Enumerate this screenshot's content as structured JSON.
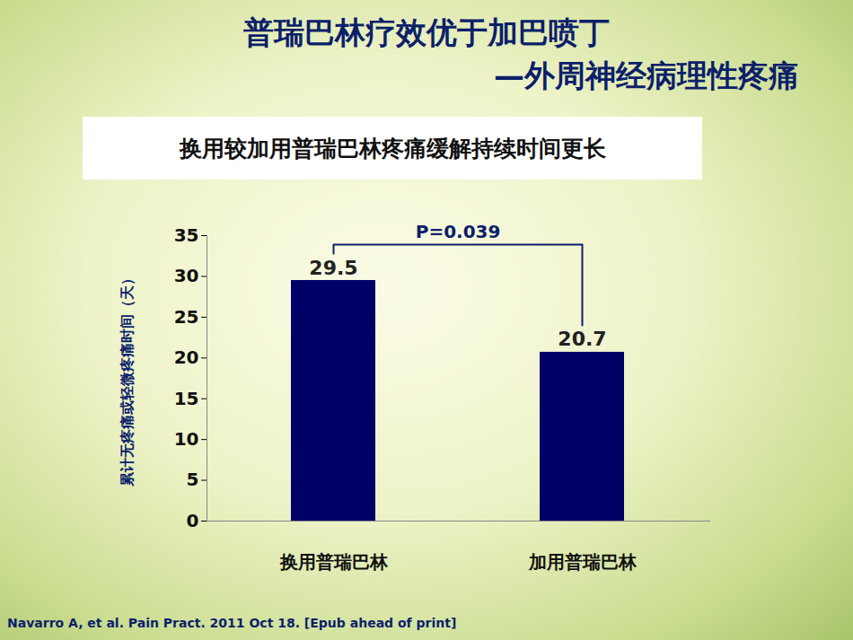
{
  "chart_data": {
    "type": "bar",
    "title": [
      "普瑞巴林疗效优于加巴喷丁",
      "—外周神经病理性疼痛"
    ],
    "subtitle": "换用较加用普瑞巴林疼痛缓解持续时间更长",
    "y_label": "累计无疼痛或轻微疼痛时间（天）",
    "categories": [
      "换用普瑞巴林",
      "加用普瑞巴林"
    ],
    "values": [
      29.5,
      20.7
    ],
    "color": "#000066",
    "ylim": [
      0,
      35
    ],
    "yticks": [
      0,
      5,
      10,
      15,
      20,
      25,
      30,
      35
    ],
    "grid": false,
    "data_labels": true,
    "annotations": [
      "P=0.039"
    ],
    "source": "Navarro A, et al. Pain Pract. 2011 Oct 18. [Epub ahead of print]"
  }
}
